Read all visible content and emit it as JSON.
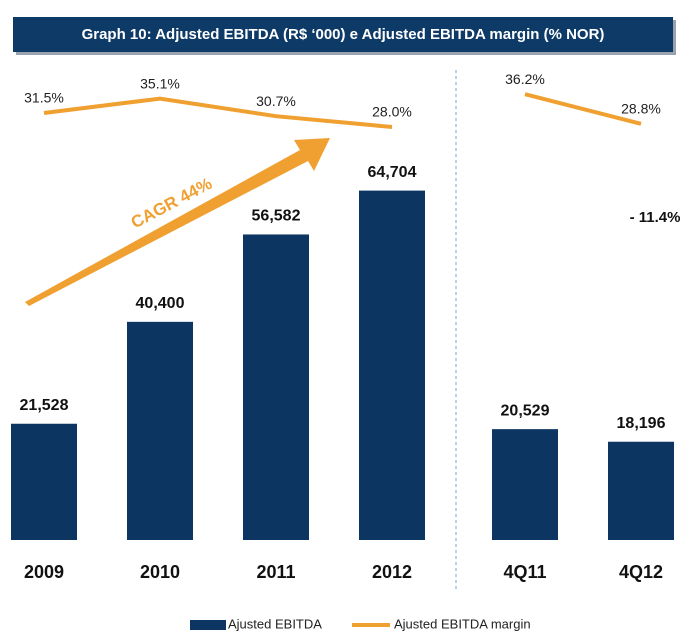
{
  "chart_data": [
    {
      "type": "bar",
      "title": "Graph 10: Adjusted EBITDA (R$ ‘000) e Adjusted EBITDA margin (% NOR)",
      "categories": [
        "2009",
        "2010",
        "2011",
        "2012"
      ],
      "ylim": [
        0,
        70000
      ],
      "y2lim": [
        0,
        40
      ],
      "series": [
        {
          "name": "Ajusted EBITDA",
          "color": "#0d3561",
          "values": [
            21528,
            40400,
            56582,
            64704
          ],
          "value_labels": [
            "21,528",
            "40,400",
            "56,582",
            "64,704"
          ]
        },
        {
          "name": "Ajusted EBITDA margin",
          "type": "line",
          "axis": "y2",
          "color": "#f0a030",
          "values": [
            31.5,
            35.1,
            30.7,
            28.0
          ],
          "value_labels": [
            "31.5%",
            "35.1%",
            "30.7%",
            "28.0%"
          ]
        }
      ],
      "annotation": "CAGR 44%"
    },
    {
      "type": "bar",
      "categories": [
        "4Q11",
        "4Q12"
      ],
      "ylim": [
        0,
        70000
      ],
      "y2lim": [
        0,
        40
      ],
      "series": [
        {
          "color": "#0d3561",
          "values": [
            20529,
            18196
          ],
          "value_labels": [
            "20,529",
            "18,196"
          ]
        },
        {
          "type": "line",
          "axis": "y2",
          "color": "#f0a030",
          "values": [
            36.2,
            28.8
          ],
          "value_labels": [
            "36.2%",
            "28.8%"
          ]
        }
      ],
      "annotation": "- 11.4%"
    }
  ]
}
